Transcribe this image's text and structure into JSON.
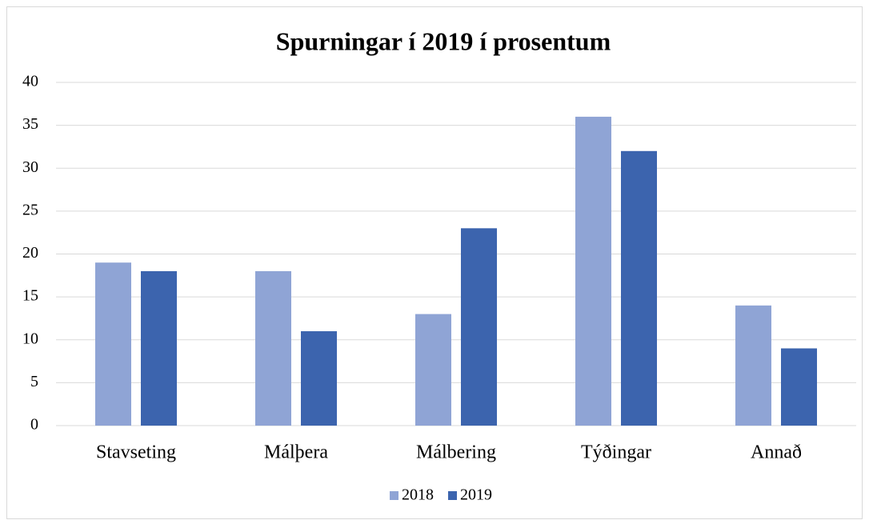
{
  "chart_data": {
    "type": "bar",
    "title": "Spurningar í 2019 í prosentum",
    "categories": [
      "Stavseting",
      "Málþera",
      "Málbering",
      "Týðingar",
      "Annað"
    ],
    "series": [
      {
        "name": "2018",
        "color": "#8fa4d5",
        "values": [
          19,
          18,
          13,
          36,
          14
        ]
      },
      {
        "name": "2019",
        "color": "#3c64ae",
        "values": [
          18,
          11,
          23,
          32,
          9
        ]
      }
    ],
    "ylim": [
      0,
      40
    ],
    "yticks": [
      0,
      5,
      10,
      15,
      20,
      25,
      30,
      35,
      40
    ],
    "grid": true,
    "legend": "bottom"
  }
}
